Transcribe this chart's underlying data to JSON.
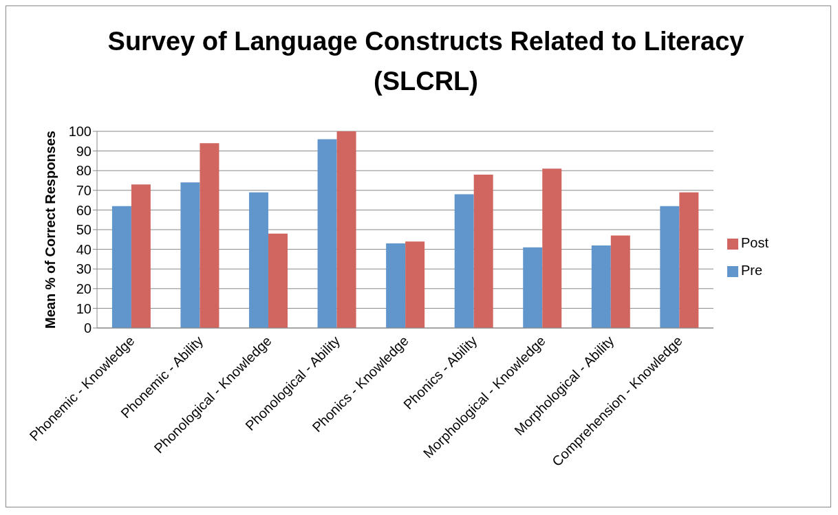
{
  "chart_data": {
    "type": "bar",
    "title": "Survey of Language Constructs Related to Literacy (SLCRL)",
    "ylabel": "Mean % of Correct Responses",
    "categories": [
      "Phonemic - Knowledge",
      "Phonemic - Ability",
      "Phonological - Knowledge",
      "Phonological - Ability",
      "Phonics - Knowledge",
      "Phonics - Ability",
      "Morphological - Knowledge",
      "Morphological - Ability",
      "Comprehension - Knowledge"
    ],
    "series": [
      {
        "name": "Pre",
        "color": "#6196cc",
        "values": [
          62,
          74,
          69,
          96,
          43,
          68,
          41,
          42,
          62
        ]
      },
      {
        "name": "Post",
        "color": "#d0665f",
        "values": [
          73,
          94,
          48,
          100,
          44,
          78,
          81,
          47,
          69
        ]
      }
    ],
    "ylim": [
      0,
      100
    ],
    "yticks": [
      0,
      10,
      20,
      30,
      40,
      50,
      60,
      70,
      80,
      90,
      100
    ],
    "grid": "y",
    "legend": "right"
  }
}
